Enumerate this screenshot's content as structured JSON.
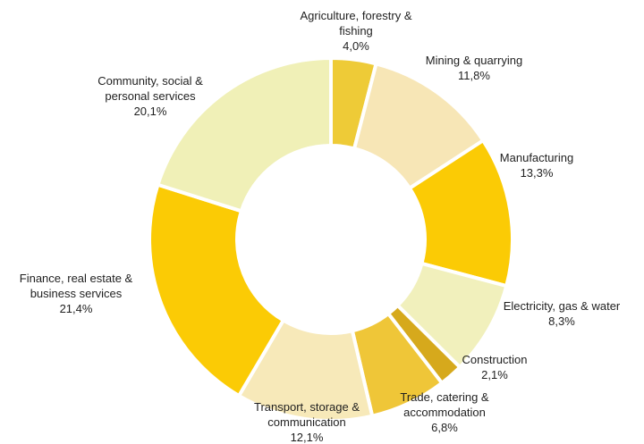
{
  "chart_data": {
    "type": "pie",
    "donut": true,
    "start_angle_deg": 0,
    "direction": "clockwise",
    "slices": [
      {
        "label": [
          "Agriculture, forestry &",
          "fishing"
        ],
        "value_text": "4,0%",
        "value": 4.0,
        "color": "#EECB37"
      },
      {
        "label": [
          "Mining & quarrying"
        ],
        "value_text": "11,8%",
        "value": 11.8,
        "color": "#F7E6B6"
      },
      {
        "label": [
          "Manufacturing"
        ],
        "value_text": "13,3%",
        "value": 13.3,
        "color": "#FBCB05"
      },
      {
        "label": [
          "Electricity, gas & water"
        ],
        "value_text": "8,3%",
        "value": 8.3,
        "color": "#F1F0BC"
      },
      {
        "label": [
          "Construction"
        ],
        "value_text": "2,1%",
        "value": 2.1,
        "color": "#D6A91C"
      },
      {
        "label": [
          "Trade, catering &",
          "accommodation"
        ],
        "value_text": "6,8%",
        "value": 6.8,
        "color": "#EFC638"
      },
      {
        "label": [
          "Transport, storage &",
          "communication"
        ],
        "value_text": "12,1%",
        "value": 12.1,
        "color": "#F7E9B9"
      },
      {
        "label": [
          "Finance, real estate &",
          "business services"
        ],
        "value_text": "21,4%",
        "value": 21.4,
        "color": "#FBCB05"
      },
      {
        "label": [
          "Community, social &",
          "personal services"
        ],
        "value_text": "20,1%",
        "value": 20.1,
        "color": "#F0F0B7"
      }
    ]
  }
}
